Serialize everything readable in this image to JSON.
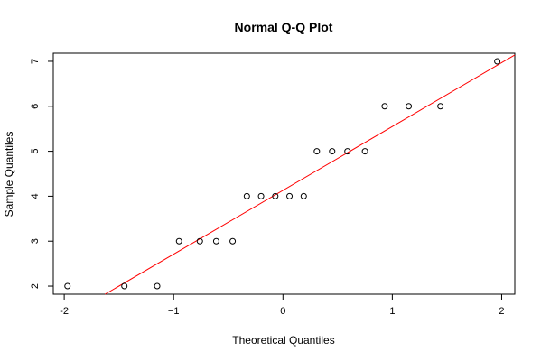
{
  "chart_data": {
    "type": "scatter",
    "title": "Normal Q-Q Plot",
    "xlabel": "Theoretical Quantiles",
    "ylabel": "Sample Quantiles",
    "xlim": [
      -2.1,
      2.12
    ],
    "ylim": [
      1.82,
      7.18
    ],
    "x_ticks": [
      -2,
      -1,
      0,
      1,
      2
    ],
    "x_tick_labels": [
      "-2",
      "−1",
      "0",
      "1",
      "2"
    ],
    "y_ticks": [
      2,
      3,
      4,
      5,
      6,
      7
    ],
    "y_tick_labels": [
      "2",
      "3",
      "4",
      "5",
      "6",
      "7"
    ],
    "points": {
      "x": [
        -1.97,
        -1.45,
        -1.15,
        -0.95,
        -0.76,
        -0.61,
        -0.46,
        -0.33,
        -0.2,
        -0.07,
        0.06,
        0.19,
        0.31,
        0.45,
        0.59,
        0.75,
        0.93,
        1.15,
        1.44,
        1.96
      ],
      "y": [
        2,
        2,
        2,
        3,
        3,
        3,
        3,
        4,
        4,
        4,
        4,
        4,
        5,
        5,
        5,
        5,
        6,
        6,
        6,
        7
      ],
      "marker": "open-circle",
      "color": "#000000"
    },
    "reference_line": {
      "intercept": 4.13,
      "slope": 1.42,
      "color": "#ff0000"
    },
    "grid": false,
    "legend": "none"
  }
}
